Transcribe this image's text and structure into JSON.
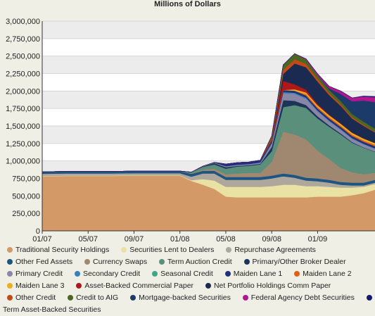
{
  "chart_data": {
    "type": "area",
    "stacked": true,
    "title": "Millions of Dollars",
    "xlabel": "",
    "ylabel": "",
    "ylim": [
      0,
      3000000
    ],
    "yticks": [
      0,
      250000,
      500000,
      750000,
      1000000,
      1250000,
      1500000,
      1750000,
      2000000,
      2250000,
      2500000,
      2750000,
      3000000
    ],
    "ytick_labels": [
      "0",
      "250,000",
      "500,000",
      "750,000",
      "1,000,000",
      "1,250,000",
      "1,500,000",
      "1,750,000",
      "2,000,000",
      "2,250,000",
      "2,500,000",
      "2,750,000",
      "3,000,000"
    ],
    "xtick_labels": [
      "01/07",
      "05/07",
      "09/07",
      "01/08",
      "05/08",
      "09/08",
      "01/09"
    ],
    "xlim": [
      "2007-01",
      "2009-06"
    ],
    "x": [
      "2007-01",
      "2007-03",
      "2007-05",
      "2007-07",
      "2007-09",
      "2007-11",
      "2008-01",
      "2008-02",
      "2008-03",
      "2008-04",
      "2008-05",
      "2008-06",
      "2008-07",
      "2008-08",
      "2008-09",
      "2008-10",
      "2008-11",
      "2008-12",
      "2009-01",
      "2009-02",
      "2009-03",
      "2009-04",
      "2009-05",
      "2009-06"
    ],
    "grid": true,
    "legend_position": "bottom",
    "series": [
      {
        "name": "Traditional Security Holdings",
        "color": "#d39a67",
        "values": [
          780000,
          785000,
          785000,
          785000,
          790000,
          790000,
          790000,
          715000,
          660000,
          600000,
          490000,
          480000,
          480000,
          480000,
          480000,
          480000,
          480000,
          480000,
          490000,
          490000,
          490000,
          510000,
          540000,
          590000
        ]
      },
      {
        "name": "Securities Lent to Dealers",
        "color": "#eae1a5",
        "values": [
          5000,
          5000,
          5000,
          5000,
          5000,
          5000,
          5000,
          10000,
          80000,
          120000,
          140000,
          150000,
          150000,
          150000,
          160000,
          180000,
          180000,
          160000,
          150000,
          140000,
          130000,
          110000,
          90000,
          80000
        ]
      },
      {
        "name": "Repurchase Agreements",
        "color": "#ada79c",
        "values": [
          30000,
          30000,
          30000,
          30000,
          30000,
          30000,
          30000,
          50000,
          80000,
          100000,
          100000,
          100000,
          100000,
          100000,
          110000,
          120000,
          100000,
          80000,
          70000,
          60000,
          40000,
          30000,
          20000,
          20000
        ]
      },
      {
        "name": "Other Fed Assets",
        "color": "#1e5480",
        "values": [
          30000,
          30000,
          30000,
          30000,
          30000,
          30000,
          30000,
          40000,
          40000,
          40000,
          40000,
          40000,
          40000,
          40000,
          40000,
          40000,
          40000,
          40000,
          40000,
          40000,
          40000,
          40000,
          40000,
          40000
        ]
      },
      {
        "name": "Currency Swaps",
        "color": "#a08870",
        "values": [
          0,
          0,
          0,
          0,
          0,
          0,
          0,
          5000,
          15000,
          30000,
          40000,
          50000,
          60000,
          60000,
          200000,
          600000,
          580000,
          550000,
          400000,
          300000,
          200000,
          150000,
          120000,
          100000
        ]
      },
      {
        "name": "Term Auction Credit",
        "color": "#5a8f7c",
        "values": [
          0,
          0,
          0,
          0,
          0,
          0,
          0,
          20000,
          40000,
          60000,
          80000,
          100000,
          100000,
          120000,
          150000,
          350000,
          420000,
          450000,
          460000,
          460000,
          480000,
          420000,
          380000,
          300000
        ]
      },
      {
        "name": "Primary/Other Broker Dealer",
        "color": "#1c3458",
        "values": [
          0,
          0,
          0,
          0,
          0,
          0,
          0,
          0,
          5000,
          20000,
          20000,
          10000,
          10000,
          10000,
          60000,
          100000,
          60000,
          40000,
          30000,
          20000,
          15000,
          10000,
          5000,
          5000
        ]
      },
      {
        "name": "Primary Credit",
        "color": "#8a86a8",
        "values": [
          0,
          0,
          0,
          0,
          0,
          0,
          0,
          0,
          5000,
          10000,
          15000,
          15000,
          15000,
          20000,
          50000,
          100000,
          100000,
          90000,
          70000,
          60000,
          55000,
          50000,
          45000,
          40000
        ]
      },
      {
        "name": "Secondary Credit",
        "color": "#3a7fb8",
        "values": [
          0,
          0,
          0,
          0,
          0,
          0,
          0,
          0,
          0,
          0,
          0,
          0,
          0,
          0,
          5000,
          10000,
          10000,
          10000,
          8000,
          6000,
          5000,
          5000,
          4000,
          4000
        ]
      },
      {
        "name": "Seasonal Credit",
        "color": "#3ca88a",
        "values": [
          0,
          0,
          0,
          0,
          0,
          0,
          0,
          0,
          0,
          0,
          0,
          0,
          0,
          0,
          2000,
          5000,
          5000,
          5000,
          4000,
          3000,
          3000,
          3000,
          2000,
          2000
        ]
      },
      {
        "name": "Maiden Lane 1",
        "color": "#203080",
        "values": [
          0,
          0,
          0,
          0,
          0,
          0,
          0,
          0,
          0,
          0,
          30000,
          30000,
          30000,
          30000,
          30000,
          30000,
          30000,
          30000,
          30000,
          30000,
          30000,
          30000,
          30000,
          30000
        ]
      },
      {
        "name": "Maiden Lane 2",
        "color": "#e06018",
        "values": [
          0,
          0,
          0,
          0,
          0,
          0,
          0,
          0,
          0,
          0,
          0,
          0,
          0,
          0,
          0,
          0,
          0,
          20000,
          20000,
          20000,
          20000,
          20000,
          20000,
          20000
        ]
      },
      {
        "name": "Maiden Lane 3",
        "color": "#e8b020",
        "values": [
          0,
          0,
          0,
          0,
          0,
          0,
          0,
          0,
          0,
          0,
          0,
          0,
          0,
          0,
          0,
          0,
          20000,
          25000,
          25000,
          25000,
          25000,
          25000,
          25000,
          25000
        ]
      },
      {
        "name": "Asset-Backed Commercial Paper",
        "color": "#b01818",
        "values": [
          0,
          0,
          0,
          0,
          0,
          0,
          0,
          0,
          0,
          0,
          0,
          0,
          0,
          0,
          20000,
          130000,
          70000,
          40000,
          20000,
          10000,
          8000,
          5000,
          3000,
          2000
        ]
      },
      {
        "name": "Net Portfolio Holdings Comm Paper",
        "color": "#1a2a50",
        "values": [
          0,
          0,
          0,
          0,
          0,
          0,
          0,
          0,
          0,
          0,
          0,
          0,
          0,
          0,
          0,
          100000,
          300000,
          320000,
          320000,
          280000,
          250000,
          200000,
          180000,
          150000
        ]
      },
      {
        "name": "Other Credit",
        "color": "#c04a18",
        "values": [
          0,
          0,
          0,
          0,
          0,
          0,
          0,
          0,
          0,
          0,
          0,
          0,
          0,
          0,
          30000,
          60000,
          60000,
          50000,
          40000,
          30000,
          25000,
          20000,
          15000,
          10000
        ]
      },
      {
        "name": "Credit to AIG",
        "color": "#4a6820",
        "values": [
          0,
          0,
          0,
          0,
          0,
          0,
          0,
          0,
          0,
          0,
          0,
          0,
          0,
          0,
          20000,
          70000,
          80000,
          60000,
          50000,
          45000,
          45000,
          45000,
          45000,
          45000
        ]
      },
      {
        "name": "Mortgage-backed Securities",
        "color": "#1c3a6a",
        "values": [
          0,
          0,
          0,
          0,
          0,
          0,
          0,
          0,
          0,
          0,
          0,
          0,
          0,
          0,
          0,
          0,
          0,
          0,
          0,
          20000,
          100000,
          180000,
          300000,
          380000
        ]
      },
      {
        "name": "Federal Agency Debt Securities",
        "color": "#b01890",
        "values": [
          0,
          0,
          0,
          0,
          0,
          0,
          0,
          0,
          0,
          0,
          0,
          0,
          0,
          0,
          0,
          0,
          0,
          10000,
          20000,
          30000,
          40000,
          50000,
          60000,
          70000
        ]
      },
      {
        "name": "Term Asset-Backed Securities",
        "color": "#141870",
        "values": [
          0,
          0,
          0,
          0,
          0,
          0,
          0,
          0,
          0,
          0,
          0,
          0,
          0,
          0,
          0,
          0,
          0,
          0,
          0,
          0,
          0,
          0,
          5000,
          10000
        ]
      }
    ]
  }
}
